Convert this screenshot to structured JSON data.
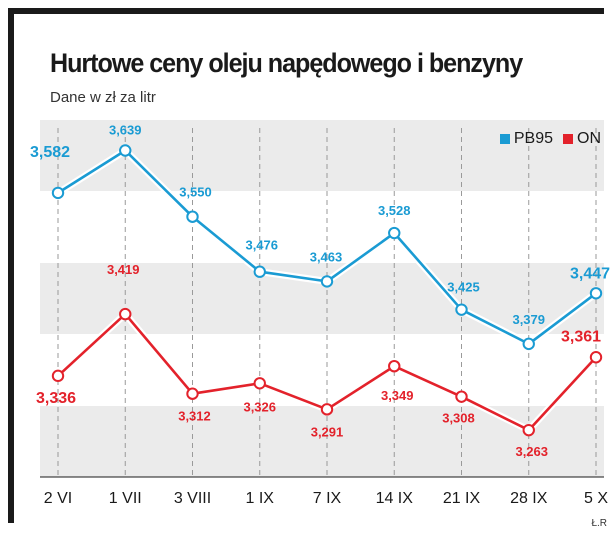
{
  "header": {
    "title": "Hurtowe ceny oleju napędowego i benzyny",
    "subtitle": "Dane w zł za litr"
  },
  "credit": "Ł.R",
  "colors": {
    "pb95": "#1a9bd3",
    "on": "#e3222b",
    "band": "#ebebeb",
    "grid": "#9a9a9a",
    "text": "#1a1a1a"
  },
  "chart_data": {
    "type": "line",
    "categories": [
      "2 VI",
      "1 VII",
      "3 VIII",
      "1 IX",
      "7 IX",
      "14 IX",
      "21 IX",
      "28 IX",
      "5 X"
    ],
    "series": [
      {
        "name": "PB95",
        "color": "#1a9bd3",
        "values": [
          3.582,
          3.639,
          3.55,
          3.476,
          3.463,
          3.528,
          3.425,
          3.379,
          3.447
        ],
        "labels": [
          "3,582",
          "3,639",
          "3,550",
          "3,476",
          "3,463",
          "3,528",
          "3,425",
          "3,379",
          "3,447"
        ]
      },
      {
        "name": "ON",
        "color": "#e3222b",
        "values": [
          3.336,
          3.419,
          3.312,
          3.326,
          3.291,
          3.349,
          3.308,
          3.263,
          3.361
        ],
        "labels": [
          "3,336",
          "3,419",
          "3,312",
          "3,326",
          "3,291",
          "3,349",
          "3,308",
          "3,263",
          "3,361"
        ]
      }
    ],
    "legend_position": "top-right",
    "ylim": [
      3.2,
      3.68
    ]
  }
}
